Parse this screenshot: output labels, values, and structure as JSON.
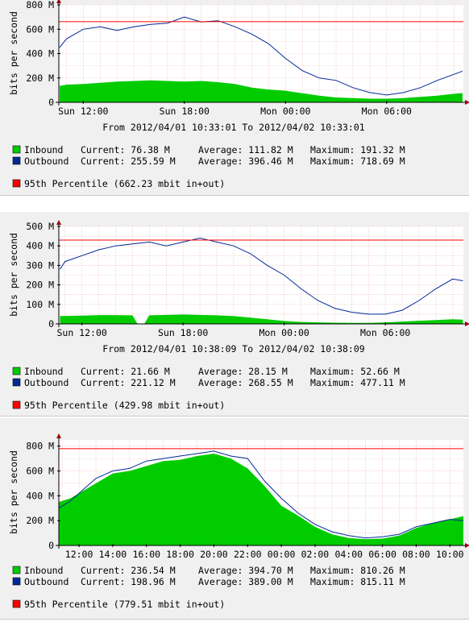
{
  "colors": {
    "inbound": "#00cc00",
    "outbound": "#002a97",
    "percentile": "#ff0000",
    "grid": "#f0bcbc",
    "axis": "#000000",
    "background": "#f0f0f0",
    "plot": "#ffffff"
  },
  "graphs": [
    {
      "ylabel": "bits per second",
      "date_range": "From 2012/04/01 10:33:01 To 2012/04/02 10:33:01",
      "legend": {
        "inbound": {
          "name": "Inbound",
          "current": "Current:   76.38 M",
          "average": "Average:  111.82 M",
          "maximum": "Maximum:  191.32 M"
        },
        "outbound": {
          "name": "Outbound",
          "current": "Current:  255.59 M",
          "average": "Average:  396.46 M",
          "maximum": "Maximum:  718.69 M"
        },
        "percentile": "95th Percentile  (662.23 mbit in+out)"
      }
    },
    {
      "ylabel": "bits per second",
      "date_range": "From 2012/04/01 10:38:09 To 2012/04/02 10:38:09",
      "legend": {
        "inbound": {
          "name": "Inbound",
          "current": "Current:   21.66 M",
          "average": "Average:   28.15 M",
          "maximum": "Maximum:   52.66 M"
        },
        "outbound": {
          "name": "Outbound",
          "current": "Current:  221.12 M",
          "average": "Average:  268.55 M",
          "maximum": "Maximum:  477.11 M"
        },
        "percentile": "95th Percentile  (429.98 mbit in+out)"
      }
    },
    {
      "ylabel": "bits per second",
      "date_range": "",
      "legend": {
        "inbound": {
          "name": "Inbound",
          "current": "Current:  236.54 M",
          "average": "Average:  394.70 M",
          "maximum": "Maximum:  810.26 M"
        },
        "outbound": {
          "name": "Outbound",
          "current": "Current:  198.96 M",
          "average": "Average:  389.00 M",
          "maximum": "Maximum:  815.11 M"
        },
        "percentile": "95th Percentile  (779.51 mbit in+out)"
      }
    }
  ],
  "chart_data": [
    {
      "type": "area",
      "ylabel": "bits per second",
      "ylim": [
        0,
        800
      ],
      "y_ticks": [
        0,
        200,
        400,
        600,
        800
      ],
      "y_tick_labels": [
        "0",
        "200 M",
        "400 M",
        "600 M",
        "800 M"
      ],
      "x_hours": [
        10.55,
        34.55
      ],
      "x_ticks": [
        12,
        18,
        24,
        30
      ],
      "x_tick_labels": [
        "Sun 12:00",
        "Sun 18:00",
        "Mon 00:00",
        "Mon 06:00"
      ],
      "percentile_95": 662.23,
      "series": [
        {
          "name": "Inbound",
          "style": "area",
          "x": [
            10.6,
            11,
            12,
            13,
            14,
            15,
            16,
            17,
            18,
            19,
            20,
            21,
            22,
            23,
            24,
            25,
            26,
            27,
            28,
            29,
            30,
            31,
            32,
            33,
            34,
            34.5
          ],
          "values": [
            135,
            145,
            150,
            160,
            170,
            175,
            180,
            175,
            170,
            175,
            165,
            150,
            120,
            105,
            95,
            75,
            55,
            40,
            35,
            30,
            30,
            35,
            45,
            55,
            70,
            76
          ]
        },
        {
          "name": "Outbound",
          "style": "line",
          "x": [
            10.6,
            11,
            12,
            13,
            14,
            15,
            16,
            17,
            18,
            19,
            20,
            21,
            22,
            23,
            24,
            25,
            26,
            27,
            28,
            29,
            30,
            31,
            32,
            33,
            34,
            34.5
          ],
          "values": [
            450,
            520,
            600,
            620,
            590,
            620,
            640,
            650,
            700,
            660,
            670,
            620,
            560,
            480,
            360,
            260,
            200,
            180,
            120,
            80,
            60,
            80,
            120,
            180,
            230,
            256
          ]
        }
      ]
    },
    {
      "type": "area",
      "ylabel": "bits per second",
      "ylim": [
        0,
        500
      ],
      "y_ticks": [
        0,
        100,
        200,
        300,
        400,
        500
      ],
      "y_tick_labels": [
        "0",
        "100 M",
        "200 M",
        "300 M",
        "400 M",
        "500 M"
      ],
      "x_hours": [
        10.63,
        34.63
      ],
      "x_ticks": [
        12,
        18,
        24,
        30
      ],
      "x_tick_labels": [
        "Sun 12:00",
        "Sun 18:00",
        "Mon 00:00",
        "Mon 06:00"
      ],
      "percentile_95": 429.98,
      "series": [
        {
          "name": "Inbound",
          "style": "area",
          "x": [
            10.7,
            12,
            13,
            14,
            15,
            15.3,
            15.7,
            16,
            17,
            18,
            19,
            20,
            21,
            22,
            23,
            24,
            25,
            26,
            27,
            28,
            29,
            30,
            31,
            32,
            33,
            34,
            34.6
          ],
          "values": [
            40,
            42,
            45,
            45,
            44,
            0,
            0,
            44,
            46,
            48,
            46,
            44,
            40,
            32,
            24,
            15,
            10,
            8,
            6,
            5,
            5,
            8,
            12,
            16,
            20,
            24,
            22
          ]
        },
        {
          "name": "Outbound",
          "style": "line",
          "x": [
            10.7,
            11,
            12,
            13,
            14,
            15,
            16,
            17,
            18,
            19,
            20,
            21,
            22,
            23,
            24,
            25,
            26,
            27,
            28,
            29,
            30,
            31,
            32,
            33,
            34,
            34.6
          ],
          "values": [
            280,
            320,
            350,
            380,
            400,
            410,
            420,
            400,
            420,
            440,
            420,
            400,
            360,
            300,
            250,
            180,
            120,
            80,
            60,
            50,
            50,
            70,
            120,
            180,
            230,
            221
          ]
        }
      ]
    },
    {
      "type": "area",
      "ylabel": "bits per second",
      "ylim": [
        0,
        850
      ],
      "y_ticks": [
        0,
        200,
        400,
        600,
        800
      ],
      "y_tick_labels": [
        "0",
        "200 M",
        "400 M",
        "600 M",
        "800 M"
      ],
      "x_hours": [
        10.8,
        34.8
      ],
      "x_ticks": [
        12,
        14,
        16,
        18,
        20,
        22,
        24,
        26,
        28,
        30,
        32,
        34
      ],
      "x_tick_labels": [
        "12:00",
        "14:00",
        "16:00",
        "18:00",
        "20:00",
        "22:00",
        "00:00",
        "02:00",
        "04:00",
        "06:00",
        "08:00",
        "10:00"
      ],
      "percentile_95": 779.51,
      "series": [
        {
          "name": "Inbound",
          "style": "area",
          "x": [
            10.8,
            11.5,
            12,
            13,
            14,
            15,
            16,
            17,
            18,
            19,
            20,
            21,
            22,
            23,
            24,
            25,
            26,
            27,
            28,
            29,
            30,
            31,
            32,
            33,
            34,
            34.8
          ],
          "values": [
            350,
            380,
            420,
            500,
            580,
            600,
            640,
            680,
            690,
            720,
            740,
            700,
            620,
            480,
            320,
            240,
            150,
            90,
            60,
            50,
            55,
            80,
            140,
            180,
            210,
            237
          ]
        },
        {
          "name": "Outbound",
          "style": "line",
          "x": [
            10.8,
            11.5,
            12,
            13,
            14,
            15,
            16,
            17,
            18,
            19,
            20,
            21,
            22,
            23,
            24,
            25,
            26,
            27,
            28,
            29,
            30,
            31,
            32,
            33,
            34,
            34.8
          ],
          "values": [
            300,
            360,
            420,
            540,
            600,
            620,
            680,
            700,
            720,
            740,
            760,
            720,
            700,
            520,
            380,
            260,
            170,
            110,
            80,
            60,
            70,
            90,
            150,
            180,
            210,
            199
          ]
        }
      ]
    }
  ]
}
